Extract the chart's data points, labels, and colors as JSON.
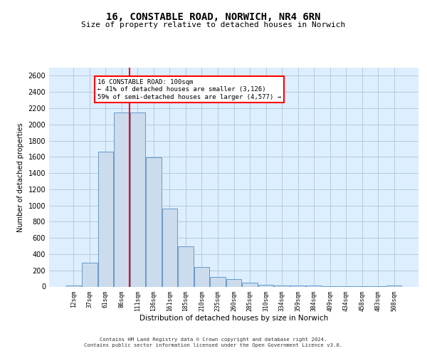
{
  "title1": "16, CONSTABLE ROAD, NORWICH, NR4 6RN",
  "title2": "Size of property relative to detached houses in Norwich",
  "xlabel": "Distribution of detached houses by size in Norwich",
  "ylabel": "Number of detached properties",
  "bar_labels": [
    "12sqm",
    "37sqm",
    "61sqm",
    "86sqm",
    "111sqm",
    "136sqm",
    "161sqm",
    "185sqm",
    "210sqm",
    "235sqm",
    "260sqm",
    "285sqm",
    "310sqm",
    "334sqm",
    "359sqm",
    "384sqm",
    "409sqm",
    "434sqm",
    "458sqm",
    "483sqm",
    "508sqm"
  ],
  "bar_values": [
    15,
    290,
    1660,
    2150,
    2150,
    1590,
    960,
    500,
    240,
    120,
    95,
    45,
    20,
    15,
    10,
    15,
    5,
    5,
    5,
    5,
    15
  ],
  "bar_color": "#ccdcec",
  "bar_edge_color": "#6699cc",
  "vline_color": "red",
  "annotation_text": "16 CONSTABLE ROAD: 100sqm\n← 41% of detached houses are smaller (3,126)\n59% of semi-detached houses are larger (4,577) →",
  "annotation_box_color": "white",
  "annotation_box_edge_color": "red",
  "ylim": [
    0,
    2700
  ],
  "yticks": [
    0,
    200,
    400,
    600,
    800,
    1000,
    1200,
    1400,
    1600,
    1800,
    2000,
    2200,
    2400,
    2600
  ],
  "grid_color": "#aec6d8",
  "background_color": "#ddeeff",
  "footer1": "Contains HM Land Registry data © Crown copyright and database right 2024.",
  "footer2": "Contains public sector information licensed under the Open Government Licence v3.0."
}
